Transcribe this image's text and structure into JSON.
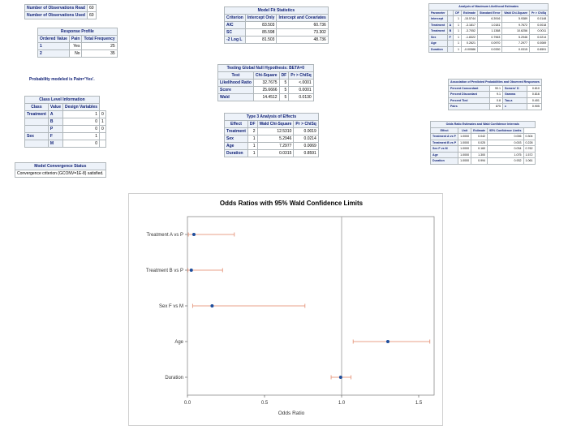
{
  "obs_table": {
    "rows": [
      {
        "label": "Number of Observations Read",
        "value": "60"
      },
      {
        "label": "Number of Observations Used",
        "value": "60"
      }
    ]
  },
  "response_profile": {
    "title": "Response Profile",
    "headers": [
      "Ordered Value",
      "Pain",
      "Total Frequency"
    ],
    "rows": [
      [
        "1",
        "Yes",
        "25"
      ],
      [
        "2",
        "No",
        "35"
      ]
    ]
  },
  "prob_modeled_note": "Probability modeled is Pain='Yes'.",
  "class_level": {
    "title": "Class Level Information",
    "headers": [
      "Class",
      "Value",
      "Design Variables"
    ],
    "rows": [
      [
        "Treatment",
        "A",
        "1",
        "0"
      ],
      [
        "",
        "B",
        "0",
        "1"
      ],
      [
        "",
        "P",
        "0",
        "0"
      ],
      [
        "Sex",
        "F",
        "1",
        ""
      ],
      [
        "",
        "M",
        "0",
        ""
      ]
    ]
  },
  "convergence": {
    "title": "Model Convergence Status",
    "text": "Convergence criterion (GCONV=1E-8) satisfied."
  },
  "fit_stats": {
    "title": "Model Fit Statistics",
    "headers": [
      "Criterion",
      "Intercept Only",
      "Intercept and Covariates"
    ],
    "rows": [
      [
        "AIC",
        "83.503",
        "60.736"
      ],
      [
        "SC",
        "85.598",
        "73.302"
      ],
      [
        "-2 Log L",
        "81.503",
        "48.736"
      ]
    ]
  },
  "global_null": {
    "title": "Testing Global Null Hypothesis: BETA=0",
    "headers": [
      "Test",
      "Chi-Square",
      "DF",
      "Pr > ChiSq"
    ],
    "rows": [
      [
        "Likelihood Ratio",
        "32.7675",
        "5",
        "<.0001"
      ],
      [
        "Score",
        "25.6666",
        "5",
        "0.0001"
      ],
      [
        "Wald",
        "14.4512",
        "5",
        "0.0130"
      ]
    ]
  },
  "type3": {
    "title": "Type 3 Analysis of Effects",
    "headers": [
      "Effect",
      "DF",
      "Wald Chi-Square",
      "Pr > ChiSq"
    ],
    "rows": [
      [
        "Treatment",
        "2",
        "12.5310",
        "0.0019"
      ],
      [
        "Sex",
        "1",
        "5.2946",
        "0.0214"
      ],
      [
        "Age",
        "1",
        "7.2977",
        "0.0069"
      ],
      [
        "Duration",
        "1",
        "0.0315",
        "0.8591"
      ]
    ]
  },
  "mle": {
    "title": "Analysis of Maximum Likelihood Estimates",
    "headers": [
      "Parameter",
      "",
      "DF",
      "Estimate",
      "Standard Error",
      "Wald Chi-Square",
      "Pr > ChiSq"
    ],
    "rows": [
      [
        "Intercept",
        "",
        "1",
        "-15.5744",
        "6.3916",
        "5.9389",
        "0.0148"
      ],
      [
        "Treatment",
        "A",
        "1",
        "-3.1817",
        "1.0181",
        "9.7672",
        "0.0018"
      ],
      [
        "Treatment",
        "B",
        "1",
        "-3.7052",
        "1.1368",
        "10.6256",
        "0.0011"
      ],
      [
        "Sex",
        "F",
        "1",
        "-1.8322",
        "0.7963",
        "5.2946",
        "0.0214"
      ],
      [
        "Age",
        "",
        "1",
        "0.2621",
        "0.0970",
        "7.2977",
        "0.0069"
      ],
      [
        "Duration",
        "",
        "1",
        "-0.00586",
        "0.0330",
        "0.0315",
        "0.8591"
      ]
    ]
  },
  "association": {
    "title": "Association of Predicted Probabilities and Observed Responses",
    "rows": [
      [
        "Percent Concordant",
        "90.1",
        "Somers' D",
        "0.810"
      ],
      [
        "Percent Discordant",
        "9.1",
        "Gamma",
        "0.816"
      ],
      [
        "Percent Tied",
        "0.8",
        "Tau-a",
        "0.401"
      ],
      [
        "Pairs",
        "875",
        "c",
        "0.905"
      ]
    ]
  },
  "odds_table": {
    "title": "Odds Ratio Estimates and Wald Confidence Intervals",
    "headers": [
      "Effect",
      "Unit",
      "Estimate",
      "95% Confidence Limits"
    ],
    "rows": [
      [
        "Treatment A vs P",
        "1.0000",
        "0.042",
        "0.006",
        "0.304"
      ],
      [
        "Treatment B vs P",
        "1.0000",
        "0.025",
        "0.003",
        "0.228"
      ],
      [
        "Sex F vs M",
        "1.0000",
        "0.160",
        "0.034",
        "0.762"
      ],
      [
        "Age",
        "1.0000",
        "1.300",
        "1.075",
        "1.572"
      ],
      [
        "Duration",
        "1.0000",
        "0.994",
        "0.932",
        "1.061"
      ]
    ]
  },
  "chart_data": {
    "type": "scatter",
    "title": "Odds Ratios with 95% Wald Confidence Limits",
    "xlabel": "Odds Ratio",
    "ylabel": "",
    "xlim": [
      0,
      1.6
    ],
    "xticks": [
      "0.0",
      "0.5",
      "1.0",
      "1.5"
    ],
    "xtick_values": [
      0,
      0.5,
      1.0,
      1.5
    ],
    "reference_line": 1.0,
    "grid": false,
    "categories": [
      "Treatment A vs P",
      "Treatment B vs P",
      "Sex F vs M",
      "Age",
      "Duration"
    ],
    "estimates": [
      0.042,
      0.025,
      0.16,
      1.3,
      0.994
    ],
    "lower": [
      0.006,
      0.003,
      0.034,
      1.075,
      0.932
    ],
    "upper": [
      0.304,
      0.228,
      0.762,
      1.572,
      1.061
    ],
    "colors": {
      "point": "#1f4e9c",
      "ci": "#e8a088",
      "ref": "#9a9a9a"
    }
  }
}
